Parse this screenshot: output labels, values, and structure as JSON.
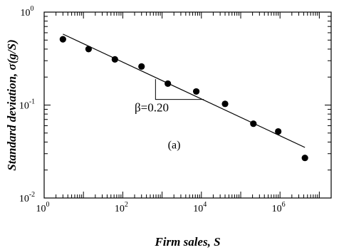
{
  "chart_data": {
    "type": "scatter",
    "xlabel": "Firm sales, S",
    "ylabel": "Standard deviation, σ(g/S)",
    "xscale": "log",
    "yscale": "log",
    "xlim": [
      1,
      20000000
    ],
    "ylim": [
      0.01,
      1
    ],
    "x_ticks": [
      {
        "base": "10",
        "exp": "0",
        "value": 1
      },
      {
        "base": "10",
        "exp": "2",
        "value": 100
      },
      {
        "base": "10",
        "exp": "4",
        "value": 10000
      },
      {
        "base": "10",
        "exp": "6",
        "value": 1000000
      }
    ],
    "y_ticks": [
      {
        "base": "10",
        "exp": "-2",
        "value": 0.01
      },
      {
        "base": "10",
        "exp": "-1",
        "value": 0.1
      },
      {
        "base": "10",
        "exp": "0",
        "value": 1
      }
    ],
    "series": [
      {
        "points": [
          {
            "x": 3.0,
            "y": 0.51
          },
          {
            "x": 13.5,
            "y": 0.4
          },
          {
            "x": 63,
            "y": 0.31
          },
          {
            "x": 300,
            "y": 0.26
          },
          {
            "x": 1400,
            "y": 0.17
          },
          {
            "x": 7400,
            "y": 0.14
          },
          {
            "x": 40000,
            "y": 0.103
          },
          {
            "x": 210000,
            "y": 0.063
          },
          {
            "x": 900000,
            "y": 0.052
          },
          {
            "x": 4300000,
            "y": 0.027
          }
        ]
      }
    ],
    "fit_line": {
      "x1": 3.0,
      "y1": 0.58,
      "x2": 4300000,
      "y2": 0.035
    },
    "slope_triangle": {
      "x_start": 680,
      "x_end": 11500,
      "y_top": 0.19,
      "y_bottom": 0.115
    },
    "annotations": {
      "slope_label": "β=0.20",
      "slope_label_pos": {
        "x": 200,
        "y": 0.085
      },
      "panel_label": "(a)",
      "panel_label_pos": {
        "x": 1400,
        "y": 0.034
      }
    }
  }
}
